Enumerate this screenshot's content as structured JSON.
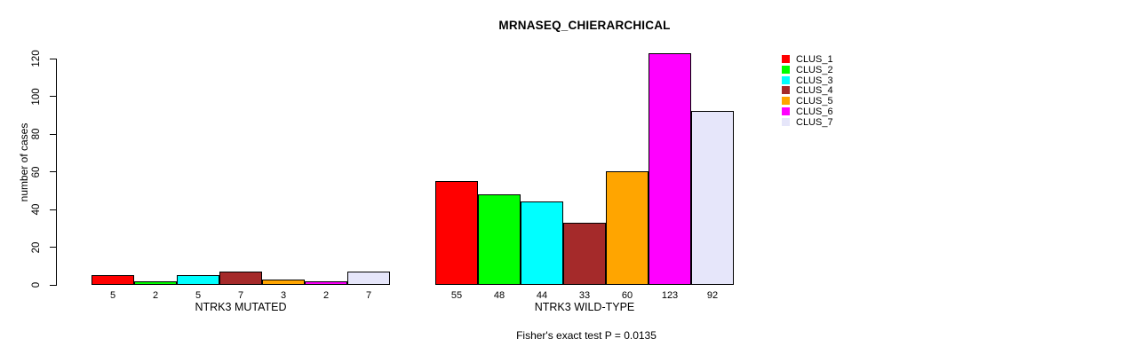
{
  "chart_data": {
    "type": "bar",
    "title": "MRNASEQ_CHIERARCHICAL",
    "ylabel": "number of cases",
    "xlabel": "",
    "ylim": [
      0,
      120
    ],
    "yticks": [
      0,
      20,
      40,
      60,
      80,
      100,
      120
    ],
    "grid": false,
    "legend_position": "right",
    "series_labels": [
      "CLUS_1",
      "CLUS_2",
      "CLUS_3",
      "CLUS_4",
      "CLUS_5",
      "CLUS_6",
      "CLUS_7"
    ],
    "colors": [
      "#ff0000",
      "#00ff00",
      "#00ffff",
      "#a52a2a",
      "#ffa500",
      "#ff00ff",
      "#e6e6fa"
    ],
    "bar_border_color": "#000000",
    "background_color": "#ffffff",
    "groups": [
      {
        "label": "NTRK3 MUTATED",
        "values": [
          5,
          2,
          5,
          7,
          3,
          2,
          7
        ]
      },
      {
        "label": "NTRK3 WILD-TYPE",
        "values": [
          55,
          48,
          44,
          33,
          60,
          123,
          92
        ]
      }
    ],
    "caption": "Fisher's exact test P = 0.0135"
  }
}
